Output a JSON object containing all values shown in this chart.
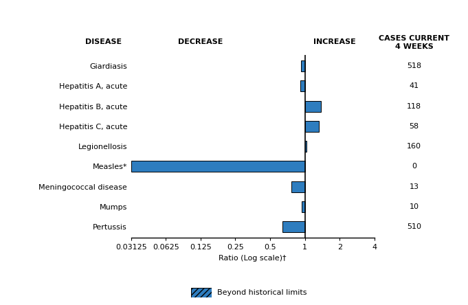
{
  "diseases": [
    "Giardiasis",
    "Hepatitis A, acute",
    "Hepatitis B, acute",
    "Hepatitis C, acute",
    "Legionellosis",
    "Measles*",
    "Meningococcal disease",
    "Mumps",
    "Pertussis"
  ],
  "ratios": [
    0.93,
    0.91,
    1.38,
    1.32,
    1.03,
    0.03125,
    0.76,
    0.94,
    0.64
  ],
  "cases": [
    "518",
    "41",
    "118",
    "58",
    "160",
    "0",
    "13",
    "10",
    "510"
  ],
  "beyond_limits": [
    false,
    false,
    false,
    false,
    false,
    true,
    false,
    false,
    false
  ],
  "bar_color": "#2e7dbf",
  "xticks": [
    0.03125,
    0.0625,
    0.125,
    0.25,
    0.5,
    1,
    2,
    4
  ],
  "xtick_labels": [
    "0.03125",
    "0.0625",
    "0.125",
    "0.25",
    "0.5",
    "1",
    "2",
    "4"
  ],
  "xlabel": "Ratio (Log scale)†",
  "legend_label": "Beyond historical limits",
  "header_disease": "DISEASE",
  "header_decrease": "DECREASE",
  "header_increase": "INCREASE",
  "header_cases": "CASES CURRENT\n4 WEEKS",
  "bar_height": 0.55,
  "fontsize": 8
}
